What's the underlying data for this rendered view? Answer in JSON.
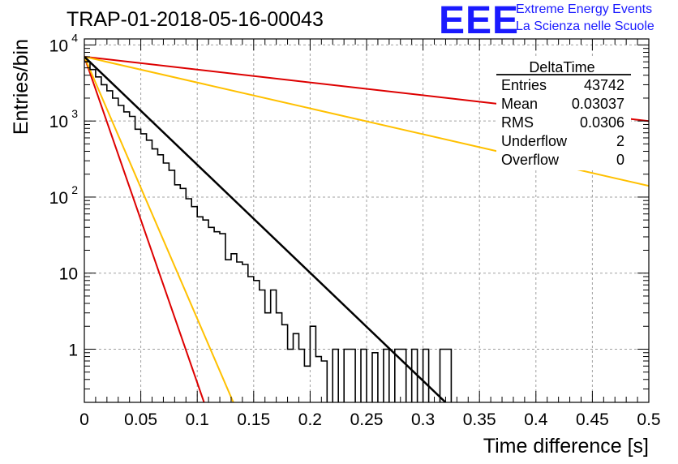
{
  "title": "TRAP-01-2018-05-16-00043",
  "logo": {
    "mark": "EEE",
    "line1": "Extreme Energy Events",
    "line2": "La Scienza nelle Scuole"
  },
  "stats_box": {
    "title": "DeltaTime",
    "rows": [
      {
        "label": "Entries",
        "value": "43742"
      },
      {
        "label": "Mean",
        "value": "0.03037"
      },
      {
        "label": "RMS",
        "value": "0.0306"
      },
      {
        "label": "Underflow",
        "value": "2"
      },
      {
        "label": "Overflow",
        "value": "0"
      }
    ]
  },
  "colors": {
    "histogram": "#000000",
    "fit": "#000000",
    "red_curves": "#dd0000",
    "yellow_curves": "#ffc000",
    "grid": "#a0a0a0"
  },
  "chart_data": {
    "type": "line",
    "xlabel": "Time difference [s]",
    "ylabel": "Entries/bin",
    "xlim": [
      0,
      0.5
    ],
    "ylim": [
      0.2,
      12000
    ],
    "log_y": true,
    "grid": true,
    "x_ticks": [
      "0",
      "0.05",
      "0.1",
      "0.15",
      "0.2",
      "0.25",
      "0.3",
      "0.35",
      "0.4",
      "0.45",
      "0.5"
    ],
    "y_ticks": [
      {
        "value": 1,
        "label": "1"
      },
      {
        "value": 10,
        "label": "10"
      },
      {
        "value": 100,
        "label": "10",
        "exp": "2"
      },
      {
        "value": 1000,
        "label": "10",
        "exp": "3"
      },
      {
        "value": 10000,
        "label": "10",
        "exp": "4"
      }
    ],
    "histogram": {
      "bin_width": 0.005,
      "bin_start": 0,
      "values": [
        6000,
        4750,
        3800,
        3000,
        2500,
        2000,
        1600,
        1320,
        1150,
        780,
        680,
        560,
        430,
        360,
        280,
        225,
        145,
        130,
        95,
        75,
        55,
        50,
        40,
        35,
        33,
        15,
        18,
        14,
        13,
        9,
        8,
        6,
        3,
        6,
        3,
        2.1,
        1,
        1.6,
        1,
        0.6,
        2,
        0.8,
        0.7,
        0,
        1,
        0,
        1,
        1,
        0,
        1,
        0,
        0.9,
        0,
        1,
        0,
        1,
        1,
        0,
        1,
        0,
        1,
        0,
        0,
        1,
        1
      ]
    },
    "series": [
      {
        "values": [
          [
            0,
            7000
          ],
          [
            0.32,
            0.2
          ]
        ]
      },
      {
        "values": [
          [
            0,
            7000
          ],
          [
            0.5,
            1000
          ]
        ]
      },
      {
        "values": [
          [
            0,
            7000
          ],
          [
            0.5,
            140
          ]
        ]
      },
      {
        "values": [
          [
            0,
            7000
          ],
          [
            0.106,
            0.2
          ]
        ]
      },
      {
        "values": [
          [
            0,
            7000
          ],
          [
            0.132,
            0.2
          ]
        ]
      }
    ]
  }
}
